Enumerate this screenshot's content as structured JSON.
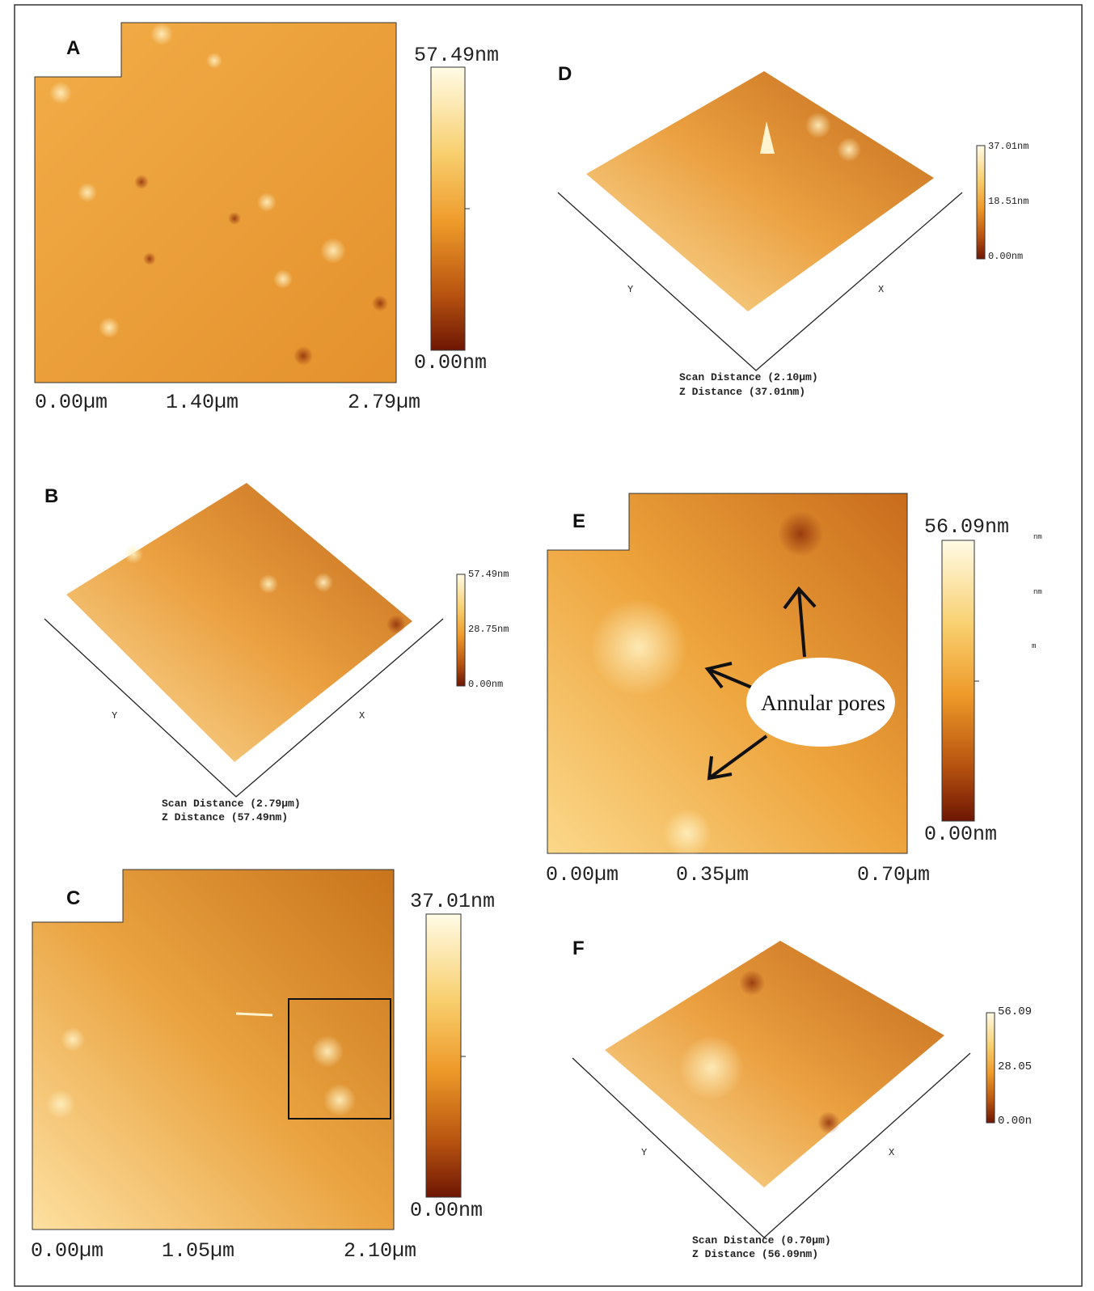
{
  "panels": [
    {
      "label": "A",
      "scale_max": "57.49nm",
      "scale_min": "0.00nm",
      "x_labels": [
        "0.00µm",
        "1.40µm",
        "2.79µm"
      ]
    },
    {
      "label": "B",
      "x_axis": "X",
      "y_axis": "Y",
      "scale": [
        "57.49nm",
        "28.75nm",
        "0.00nm"
      ],
      "scan_distance": "Scan Distance (2.79µm)",
      "z_distance": "Z Distance (57.49nm)"
    },
    {
      "label": "C",
      "scale_max": "37.01nm",
      "scale_min": "0.00nm",
      "x_labels": [
        "0.00µm",
        "1.05µm",
        "2.10µm"
      ]
    },
    {
      "label": "D",
      "x_axis": "X",
      "y_axis": "Y",
      "scale": [
        "37.01nm",
        "18.51nm",
        "0.00nm"
      ],
      "scan_distance": "Scan Distance (2.10µm)",
      "z_distance": "Z Distance (37.01nm)"
    },
    {
      "label": "E",
      "scale_max": "56.09nm",
      "scale_min": "0.00nm",
      "x_labels": [
        "0.00µm",
        "0.35µm",
        "0.70µm"
      ],
      "annotation": "Annular pores",
      "cutoff_labels": [
        "nm",
        "nm",
        "m"
      ]
    },
    {
      "label": "F",
      "x_axis": "X",
      "y_axis": "Y",
      "scale": [
        "56.09",
        "28.05",
        "0.00n"
      ],
      "scan_distance": "Scan Distance (0.70µm)",
      "z_distance": "Z Distance (56.09nm)"
    }
  ]
}
